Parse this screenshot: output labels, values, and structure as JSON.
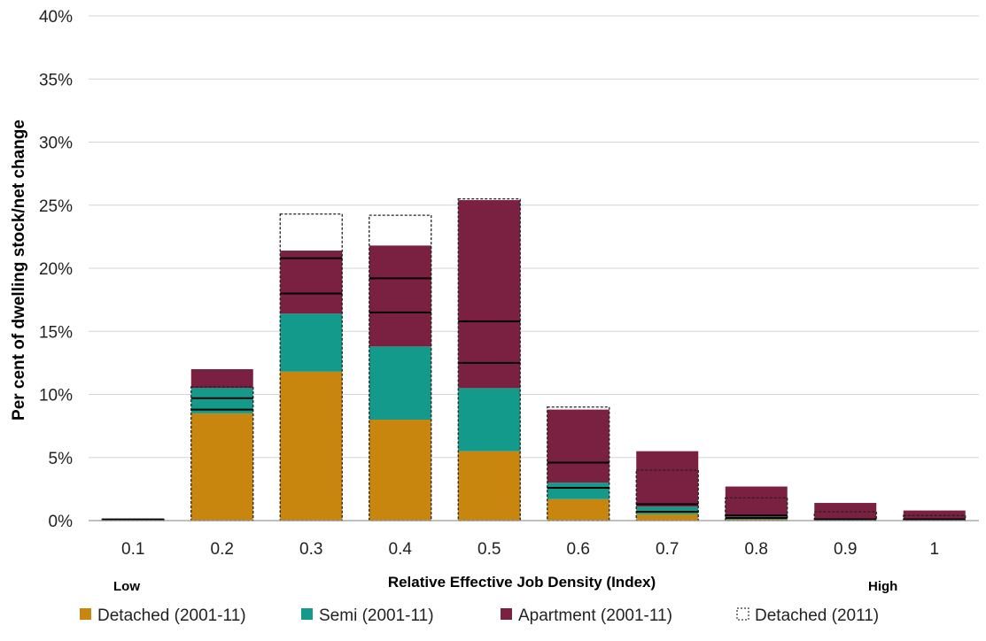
{
  "chart_data": {
    "type": "bar",
    "categories": [
      "0.1",
      "0.2",
      "0.3",
      "0.4",
      "0.5",
      "0.6",
      "0.7",
      "0.8",
      "0.9",
      "1"
    ],
    "series": [
      {
        "name": "Detached (2001-11)",
        "color": "#c8860e",
        "values": [
          0,
          8.5,
          11.8,
          8.0,
          5.5,
          1.7,
          0.5,
          0.1,
          0.0,
          0.0
        ]
      },
      {
        "name": "Semi (2001-11)",
        "color": "#149a8a",
        "values": [
          0,
          2.0,
          4.6,
          5.8,
          5.0,
          1.3,
          0.6,
          0.2,
          0.1,
          0.0
        ]
      },
      {
        "name": "Apartment (2001-11)",
        "color": "#7a2040",
        "values": [
          0,
          1.5,
          5.0,
          8.0,
          14.9,
          5.8,
          4.4,
          2.4,
          1.3,
          0.8
        ]
      }
    ],
    "overlay": {
      "name": "Detached (2011)",
      "style": "dashed-outline",
      "values": [
        0.1,
        10.6,
        24.3,
        24.2,
        25.5,
        9.0,
        4.0,
        1.8,
        0.7,
        0.4
      ]
    },
    "reference_lines": [
      [
        0.1
      ],
      [
        8.8,
        9.7
      ],
      [
        18.0,
        20.8
      ],
      [
        16.5,
        19.2
      ],
      [
        12.5,
        15.8
      ],
      [
        2.6,
        4.6
      ],
      [
        0.7,
        1.3
      ],
      [
        0.2,
        0.4
      ],
      [
        0.1
      ],
      [
        0.1
      ]
    ],
    "ylabel": "Per cent of dwelling stock/net change",
    "xlabel": "Relative Effective Job Density (Index)",
    "x_low_label": "Low",
    "x_high_label": "High",
    "ylim": [
      0,
      40
    ],
    "yticks": [
      "0%",
      "5%",
      "10%",
      "15%",
      "20%",
      "25%",
      "30%",
      "35%",
      "40%"
    ],
    "grid": true,
    "legend_position": "bottom"
  }
}
